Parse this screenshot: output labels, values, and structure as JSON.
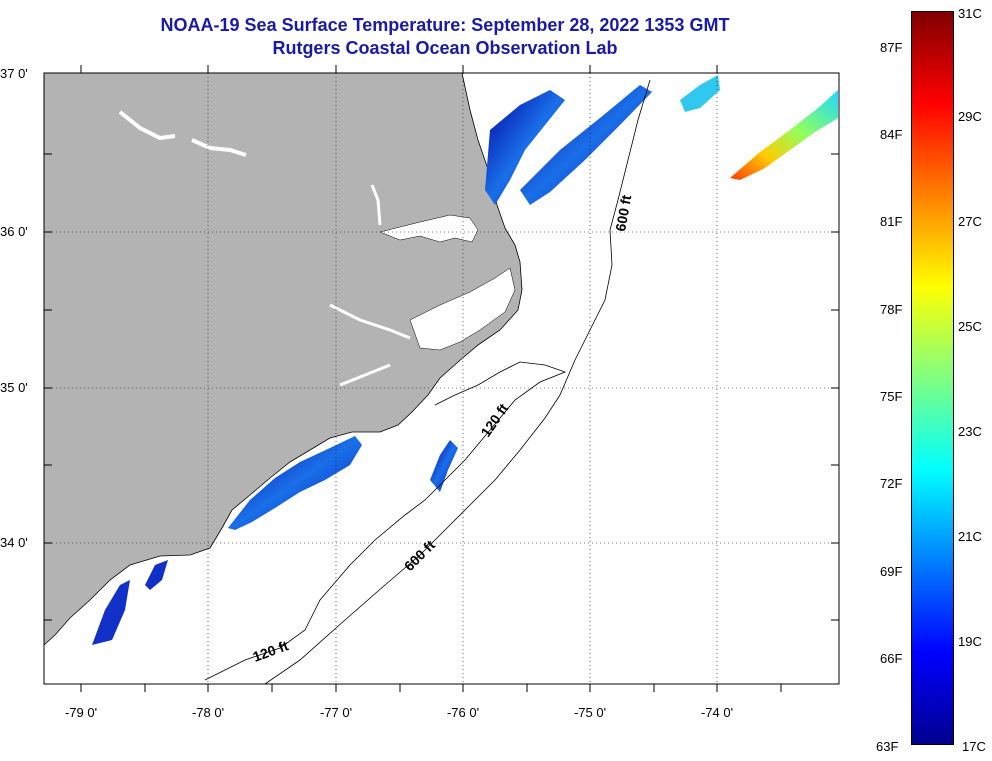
{
  "title": {
    "line1": "NOAA-19 Sea Surface Temperature:  September 28, 2022 1353 GMT",
    "line2": "Rutgers Coastal Ocean Observation Lab"
  },
  "map": {
    "lat_labels": [
      "37 0'",
      "36 0'",
      "35 0'",
      "34 0'"
    ],
    "lon_labels": [
      "-79 0'",
      "-78 0'",
      "-77 0'",
      "-76 0'",
      "-75 0'",
      "-74 0'"
    ],
    "lat_range": [
      33.13,
      37.0
    ],
    "lon_range": [
      -79.3,
      -73.1
    ],
    "contour_labels": [
      "600 ft",
      "120 ft",
      "600 ft",
      "120 ft"
    ],
    "grid": true,
    "colors": {
      "land": "#b3b3b3",
      "ocean_nodata": "#ffffff",
      "grid": "#000000"
    }
  },
  "colorbar": {
    "celsius_labels": [
      "31C",
      "29C",
      "27C",
      "25C",
      "23C",
      "21C",
      "19C",
      "17C"
    ],
    "fahrenheit_labels": [
      "87F",
      "84F",
      "81F",
      "78F",
      "75F",
      "72F",
      "69F",
      "66F",
      "63F"
    ],
    "range_c": [
      17,
      31
    ],
    "colors": [
      "#00008f",
      "#0000ff",
      "#0080ff",
      "#00ffff",
      "#80ff80",
      "#ffff00",
      "#ff8000",
      "#ff0000",
      "#800000"
    ]
  }
}
